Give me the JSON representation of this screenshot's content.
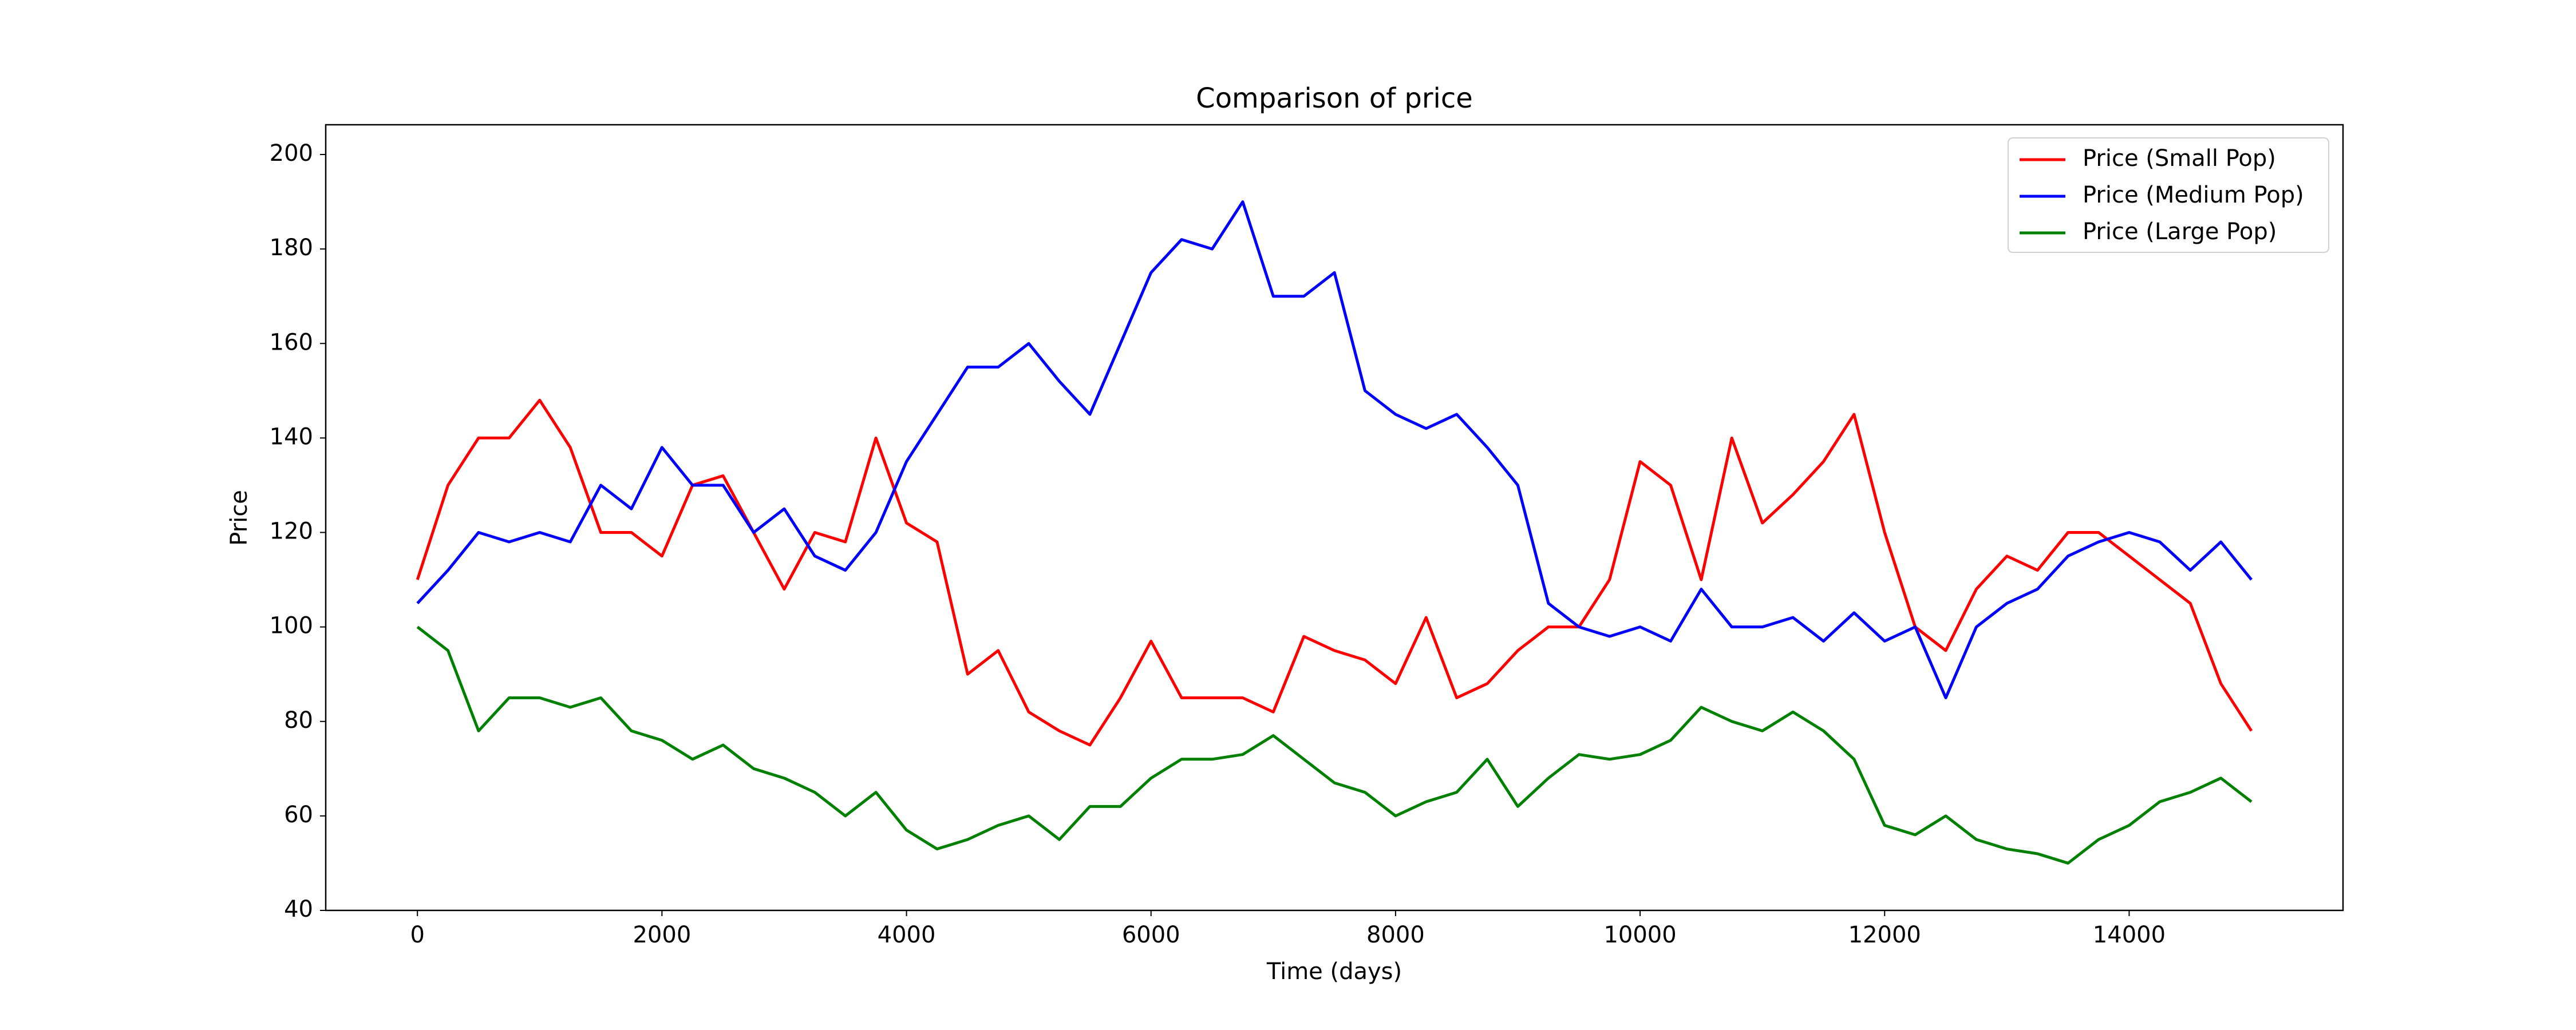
{
  "chart_data": {
    "type": "line",
    "title": "Comparison of price",
    "xlabel": "Time (days)",
    "ylabel": "Price",
    "x": [
      0,
      250,
      500,
      750,
      1000,
      1250,
      1500,
      1750,
      2000,
      2250,
      2500,
      2750,
      3000,
      3250,
      3500,
      3750,
      4000,
      4250,
      4500,
      4750,
      5000,
      5250,
      5500,
      5750,
      6000,
      6250,
      6500,
      6750,
      7000,
      7250,
      7500,
      7750,
      8000,
      8250,
      8500,
      8750,
      9000,
      9250,
      9500,
      9750,
      10000,
      10250,
      10500,
      10750,
      11000,
      11250,
      11500,
      11750,
      12000,
      12250,
      12500,
      12750,
      13000,
      13250,
      13500,
      13750,
      14000,
      14250,
      14500,
      14750,
      15000
    ],
    "series": [
      {
        "name": "Price (Small Pop)",
        "color": "#ff0000",
        "values": [
          110,
          130,
          140,
          140,
          148,
          138,
          120,
          120,
          115,
          130,
          132,
          120,
          108,
          120,
          118,
          140,
          122,
          118,
          90,
          95,
          82,
          78,
          75,
          85,
          97,
          85,
          85,
          85,
          82,
          98,
          95,
          93,
          88,
          102,
          85,
          88,
          95,
          100,
          100,
          110,
          135,
          130,
          110,
          140,
          122,
          128,
          135,
          145,
          120,
          100,
          95,
          108,
          115,
          112,
          120,
          120,
          115,
          110,
          105,
          88,
          78
        ]
      },
      {
        "name": "Price (Medium Pop)",
        "color": "#0000ff",
        "values": [
          105,
          112,
          120,
          118,
          120,
          118,
          130,
          125,
          138,
          130,
          130,
          120,
          125,
          115,
          112,
          120,
          135,
          145,
          155,
          155,
          160,
          152,
          145,
          160,
          175,
          182,
          180,
          190,
          170,
          170,
          175,
          150,
          145,
          142,
          145,
          138,
          130,
          105,
          100,
          98,
          100,
          97,
          108,
          100,
          100,
          102,
          97,
          103,
          97,
          100,
          85,
          100,
          105,
          108,
          115,
          118,
          120,
          118,
          112,
          118,
          110
        ]
      },
      {
        "name": "Price (Large Pop)",
        "color": "#008000",
        "values": [
          100,
          95,
          78,
          85,
          85,
          83,
          85,
          78,
          76,
          72,
          75,
          70,
          68,
          65,
          60,
          65,
          57,
          53,
          55,
          58,
          60,
          55,
          62,
          62,
          68,
          72,
          72,
          73,
          77,
          72,
          67,
          65,
          60,
          63,
          65,
          72,
          62,
          68,
          73,
          72,
          73,
          76,
          83,
          80,
          78,
          82,
          78,
          72,
          58,
          56,
          60,
          55,
          53,
          52,
          50,
          55,
          58,
          63,
          65,
          68,
          63
        ]
      }
    ],
    "xlim": [
      -750,
      15749
    ],
    "ylim": [
      40,
      206.3
    ],
    "xticks": [
      0,
      2000,
      4000,
      6000,
      8000,
      10000,
      12000,
      14000
    ],
    "yticks": [
      40,
      60,
      80,
      100,
      120,
      140,
      160,
      180,
      200
    ],
    "legend": "upper right"
  }
}
